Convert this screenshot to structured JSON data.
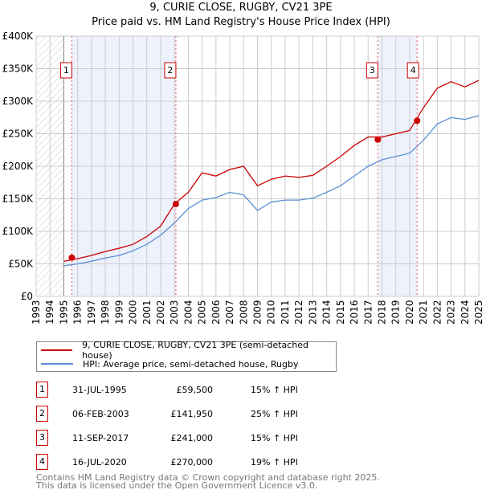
{
  "title": "9, CURIE CLOSE, RUGBY, CV21 3PE",
  "subtitle": "Price paid vs. HM Land Registry's House Price Index (HPI)",
  "chart_data": {
    "type": "line",
    "ylim": [
      0,
      400000
    ],
    "xlim": [
      1993,
      2025
    ],
    "yticks": [
      {
        "v": 0,
        "label": "£0"
      },
      {
        "v": 50000,
        "label": "£50K"
      },
      {
        "v": 100000,
        "label": "£100K"
      },
      {
        "v": 150000,
        "label": "£150K"
      },
      {
        "v": 200000,
        "label": "£200K"
      },
      {
        "v": 250000,
        "label": "£250K"
      },
      {
        "v": 300000,
        "label": "£300K"
      },
      {
        "v": 350000,
        "label": "£350K"
      },
      {
        "v": 400000,
        "label": "£400K"
      }
    ],
    "xticks": [
      "1993",
      "1994",
      "1995",
      "1996",
      "1997",
      "1998",
      "1999",
      "2000",
      "2001",
      "2002",
      "2003",
      "2004",
      "2005",
      "2006",
      "2007",
      "2008",
      "2009",
      "2010",
      "2011",
      "2012",
      "2013",
      "2014",
      "2015",
      "2016",
      "2017",
      "2018",
      "2019",
      "2020",
      "2021",
      "2022",
      "2023",
      "2024",
      "2025"
    ],
    "x": [
      1995.0,
      1996,
      1997,
      1998,
      1999,
      2000,
      2001,
      2002,
      2003,
      2004,
      2005,
      2006,
      2007,
      2008,
      2009,
      2010,
      2011,
      2012,
      2013,
      2014,
      2015,
      2016,
      2017,
      2018,
      2019,
      2020,
      2021,
      2022,
      2023,
      2024,
      2025
    ],
    "series": [
      {
        "name": "9, CURIE CLOSE, RUGBY, CV21 3PE (semi-detached house)",
        "color": "#cc0000",
        "values": [
          54000,
          58000,
          63000,
          69000,
          74000,
          80000,
          92000,
          108000,
          142000,
          160000,
          190000,
          185000,
          195000,
          200000,
          170000,
          180000,
          185000,
          183000,
          186000,
          200000,
          215000,
          232000,
          245000,
          245000,
          250000,
          255000,
          290000,
          320000,
          330000,
          322000,
          332000
        ]
      },
      {
        "name": "HPI: Average price, semi-detached house, Rugby",
        "color": "#5b8fd4",
        "values": [
          47000,
          50000,
          54000,
          59000,
          63000,
          70000,
          80000,
          94000,
          113000,
          135000,
          148000,
          152000,
          160000,
          156000,
          132000,
          145000,
          148000,
          148000,
          151000,
          160000,
          170000,
          185000,
          200000,
          210000,
          215000,
          220000,
          240000,
          265000,
          275000,
          272000,
          278000
        ]
      }
    ],
    "sales": [
      {
        "n": "1",
        "x": 1995.58,
        "date": "31-JUL-1995",
        "price": 59500,
        "price_label": "£59,500",
        "hpi": "15% ↑ HPI"
      },
      {
        "n": "2",
        "x": 2003.1,
        "date": "06-FEB-2003",
        "price": 141950,
        "price_label": "£141,950",
        "hpi": "25% ↑ HPI"
      },
      {
        "n": "3",
        "x": 2017.7,
        "date": "11-SEP-2017",
        "price": 241000,
        "price_label": "£241,000",
        "hpi": "15% ↑ HPI"
      },
      {
        "n": "4",
        "x": 2020.54,
        "date": "16-JUL-2020",
        "price": 270000,
        "price_label": "£270,000",
        "hpi": "19% ↑ HPI"
      }
    ]
  },
  "footer1": "Contains HM Land Registry data © Crown copyright and database right 2025.",
  "footer2": "This data is licensed under the Open Government Licence v3.0."
}
